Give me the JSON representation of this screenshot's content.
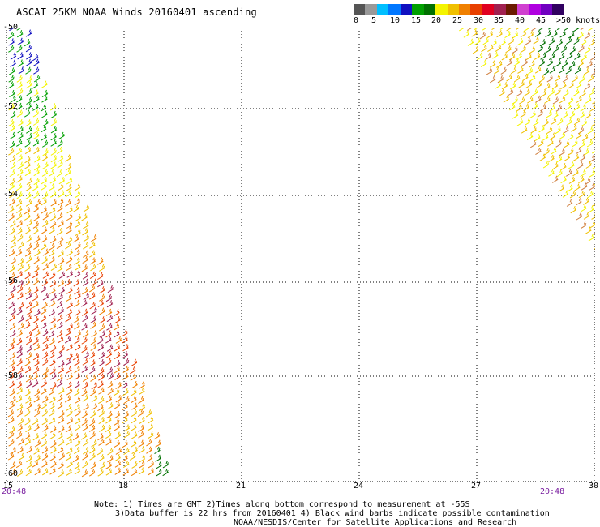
{
  "title": "ASCAT 25KM NOAA Winds 20160401 ascending",
  "legend": {
    "colors": [
      "#555555",
      "#999999",
      "#00bfff",
      "#0077ff",
      "#1010c0",
      "#00a000",
      "#007000",
      "#f4f400",
      "#f0c000",
      "#f08000",
      "#e84000",
      "#e00020",
      "#a02050",
      "#6a1a00",
      "#d040d0",
      "#b000e0",
      "#7000c0",
      "#300060"
    ],
    "labels": [
      "0",
      "5",
      "10",
      "15",
      "20",
      "25",
      "30",
      "35",
      "40",
      "45",
      ">50 knots"
    ]
  },
  "axes": {
    "lat_labels": [
      "-50",
      "-52",
      "-54",
      "-56",
      "-58",
      "-60"
    ],
    "lon_labels": [
      "15",
      "18",
      "21",
      "24",
      "27",
      "30"
    ],
    "lat_range": [
      -60,
      -50
    ],
    "lon_range": [
      15,
      30
    ]
  },
  "times": {
    "left": "20:48",
    "right": "20:48"
  },
  "notes": [
    "Note: 1) Times are GMT 2)Times along bottom correspond to measurement at -55S",
    "3)Data buffer is 22 hrs from 20160401 4) Black wind barbs indicate possible contamination",
    "NOAA/NESDIS/Center for Satellite Applications and Research"
  ]
}
